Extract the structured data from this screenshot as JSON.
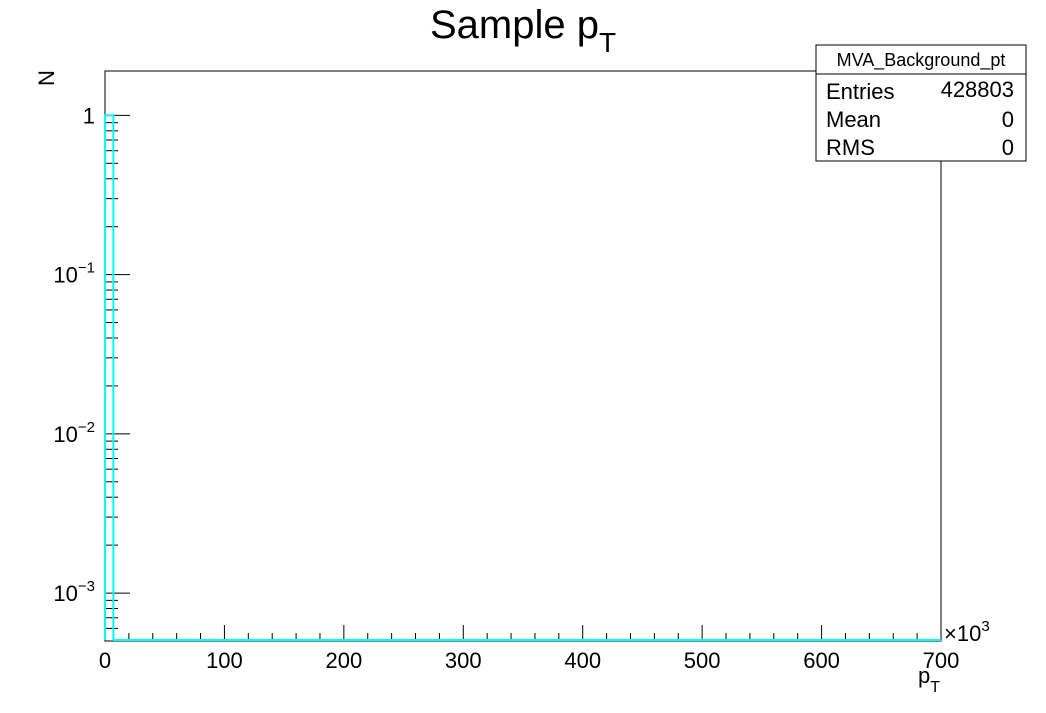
{
  "chart_data": {
    "type": "histogram",
    "title_main": "Sample p",
    "title_sub": "T",
    "xlabel_main": "p",
    "xlabel_sub": "T",
    "ylabel": "N",
    "x_multiplier_base": "×10",
    "x_multiplier_exp": "3",
    "xlim": [
      0,
      700
    ],
    "ylim": [
      0.0005,
      1.9
    ],
    "y_scale": "log",
    "x_ticks": [
      0,
      100,
      200,
      300,
      400,
      500,
      600,
      700
    ],
    "x_tick_labels": [
      "0",
      "100",
      "200",
      "300",
      "400",
      "500",
      "600",
      "700"
    ],
    "y_tick_labels": [
      {
        "value": 1,
        "base": "1",
        "exp": ""
      },
      {
        "value": 0.1,
        "base": "10",
        "exp": "−1"
      },
      {
        "value": 0.01,
        "base": "10",
        "exp": "−2"
      },
      {
        "value": 0.001,
        "base": "10",
        "exp": "−3"
      }
    ],
    "series": [
      {
        "color": "#00ffff",
        "bins": [
          {
            "x_low": 0,
            "x_high": 7,
            "value": 1
          }
        ]
      }
    ],
    "stats_box": {
      "name": "MVA_Background_pt",
      "rows": [
        {
          "label": "Entries",
          "value": "428803"
        },
        {
          "label": "Mean",
          "value": "0"
        },
        {
          "label": "RMS",
          "value": "0"
        }
      ]
    }
  }
}
